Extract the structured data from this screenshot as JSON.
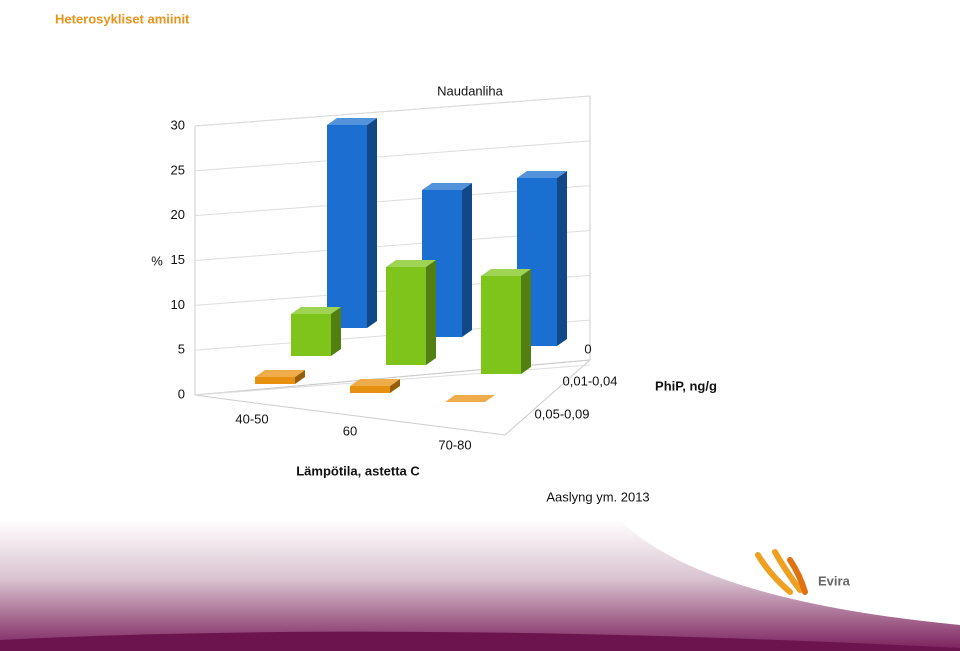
{
  "slide_title": "Heterosykliset amiinit",
  "citation": "Aaslyng ym. 2013",
  "logo": "Evira",
  "chart_data": {
    "type": "bar",
    "title": "Naudanliha",
    "y_label": "%",
    "x_label": "Lämpötila, astetta C",
    "z_label": "PhiP, ng/g",
    "categories": [
      "40-50",
      "60",
      "70-80"
    ],
    "series": [
      {
        "name": "0",
        "color": "#1a6fd0",
        "values": [
          29,
          21,
          24
        ]
      },
      {
        "name": "0,01-0,04",
        "color": "#7ec41a",
        "values": [
          6,
          14,
          14
        ]
      },
      {
        "name": "0,05-0,09",
        "color": "#e8900f",
        "values": [
          1,
          1,
          0
        ]
      }
    ],
    "ylim": [
      0,
      30
    ],
    "yticks": [
      0,
      5,
      10,
      15,
      20,
      25,
      30
    ],
    "grid": true
  }
}
